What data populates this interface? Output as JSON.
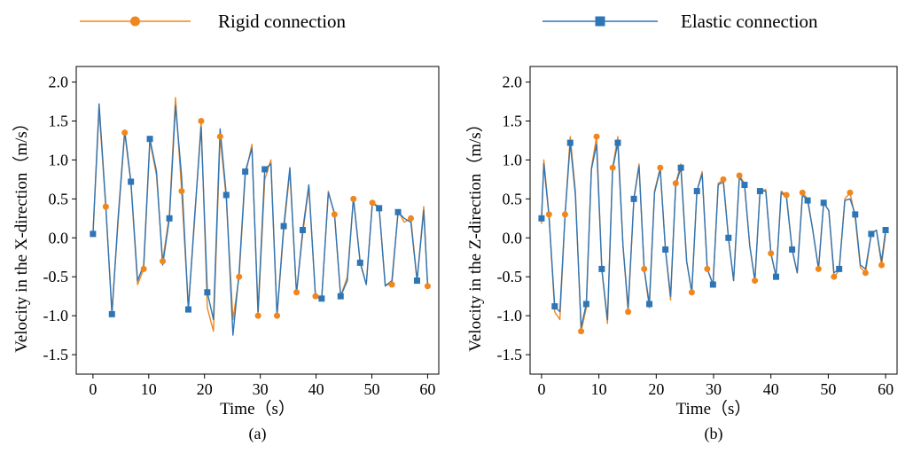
{
  "legend": {
    "items": [
      {
        "label": "Rigid connection",
        "color": "#f0861c",
        "marker": "circle"
      },
      {
        "label": "Elastic connection",
        "color": "#2e75b6",
        "marker": "square"
      }
    ]
  },
  "chart_data": [
    {
      "type": "line",
      "panel_label": "(a)",
      "xlabel": "Time（s）",
      "ylabel": "Velocity in the X-direction（m/s）",
      "xlim": [
        -3,
        62
      ],
      "ylim": [
        -1.75,
        2.2
      ],
      "xticks": [
        0,
        10,
        20,
        30,
        40,
        50,
        60
      ],
      "yticks": [
        -1.5,
        -1.0,
        -0.5,
        0.0,
        0.5,
        1.0,
        1.5,
        2.0
      ],
      "grid": false,
      "legend_position": "top",
      "series": [
        {
          "name": "Rigid connection",
          "color": "#f0861c",
          "marker": "circle",
          "x": [
            0,
            1.1,
            2.3,
            3.4,
            4.5,
            5.7,
            6.8,
            8.0,
            9.1,
            10.2,
            11.4,
            12.5,
            13.7,
            14.8,
            15.9,
            17.1,
            18.2,
            19.4,
            20.5,
            21.6,
            22.8,
            23.9,
            25.1,
            26.2,
            27.3,
            28.5,
            29.6,
            30.8,
            31.9,
            33.0,
            34.2,
            35.3,
            36.5,
            37.6,
            38.7,
            39.9,
            41.0,
            42.2,
            43.3,
            44.4,
            45.6,
            46.7,
            47.9,
            49.0,
            50.1,
            51.3,
            52.4,
            53.6,
            54.7,
            55.8,
            57.0,
            58.1,
            59.3,
            60.0
          ],
          "y": [
            0.05,
            1.65,
            0.4,
            -0.95,
            0.2,
            1.35,
            0.7,
            -0.6,
            -0.4,
            1.25,
            0.8,
            -0.3,
            0.3,
            1.8,
            0.6,
            -0.9,
            0.2,
            1.5,
            -0.9,
            -1.2,
            1.3,
            0.5,
            -1.05,
            -0.5,
            0.8,
            1.2,
            -1.0,
            0.75,
            1.0,
            -1.0,
            0.1,
            0.85,
            -0.7,
            0.05,
            0.65,
            -0.75,
            -0.8,
            0.6,
            0.3,
            -0.75,
            -0.5,
            0.5,
            -0.3,
            -0.6,
            0.45,
            0.4,
            -0.6,
            -0.6,
            0.35,
            0.2,
            0.25,
            -0.55,
            0.4,
            -0.62
          ]
        },
        {
          "name": "Elastic connection",
          "color": "#2e75b6",
          "marker": "square",
          "x": [
            0,
            1.1,
            2.3,
            3.4,
            4.5,
            5.7,
            6.8,
            8.0,
            9.1,
            10.2,
            11.4,
            12.5,
            13.7,
            14.8,
            15.9,
            17.1,
            18.2,
            19.4,
            20.5,
            21.6,
            22.8,
            23.9,
            25.1,
            26.2,
            27.3,
            28.5,
            29.6,
            30.8,
            31.9,
            33.0,
            34.2,
            35.3,
            36.5,
            37.6,
            38.7,
            39.9,
            41.0,
            42.2,
            43.3,
            44.4,
            45.6,
            46.7,
            47.9,
            49.0,
            50.1,
            51.3,
            52.4,
            53.6,
            54.7,
            55.8,
            57.0,
            58.1,
            59.3,
            60.0
          ],
          "y": [
            0.05,
            1.72,
            0.42,
            -0.98,
            0.25,
            1.38,
            0.72,
            -0.55,
            -0.35,
            1.27,
            0.85,
            -0.35,
            0.25,
            1.7,
            0.78,
            -0.92,
            0.25,
            1.42,
            -0.7,
            -1.05,
            1.4,
            0.55,
            -1.25,
            -0.45,
            0.85,
            1.15,
            -0.95,
            0.88,
            0.95,
            -1.0,
            0.15,
            0.9,
            -0.72,
            0.1,
            0.68,
            -0.75,
            -0.78,
            0.58,
            0.32,
            -0.75,
            -0.55,
            0.52,
            -0.32,
            -0.6,
            0.45,
            0.38,
            -0.62,
            -0.55,
            0.33,
            0.25,
            0.2,
            -0.55,
            0.35,
            -0.6
          ]
        }
      ]
    },
    {
      "type": "line",
      "panel_label": "(b)",
      "xlabel": "Time（s）",
      "ylabel": "Velocity in the Z-direction（m/s）",
      "xlim": [
        -2,
        62
      ],
      "ylim": [
        -1.75,
        2.2
      ],
      "xticks": [
        0,
        10,
        20,
        30,
        40,
        50,
        60
      ],
      "yticks": [
        -1.5,
        -1.0,
        -0.5,
        0.0,
        0.5,
        1.0,
        1.5,
        2.0
      ],
      "grid": false,
      "legend_position": "top",
      "series": [
        {
          "name": "Rigid connection",
          "color": "#f0861c",
          "marker": "circle",
          "x": [
            0,
            0.4,
            1.3,
            2.3,
            3.2,
            4.1,
            5.0,
            5.9,
            6.9,
            7.8,
            8.7,
            9.6,
            10.5,
            11.5,
            12.4,
            13.3,
            14.2,
            15.1,
            16.1,
            17.0,
            17.9,
            18.8,
            19.7,
            20.7,
            21.6,
            22.5,
            23.4,
            24.3,
            25.3,
            26.2,
            27.1,
            28.0,
            28.9,
            29.9,
            30.8,
            31.7,
            32.6,
            33.5,
            34.5,
            35.4,
            36.3,
            37.2,
            38.1,
            39.1,
            40.0,
            40.9,
            41.8,
            42.7,
            43.7,
            44.6,
            45.5,
            46.4,
            47.3,
            48.3,
            49.2,
            50.1,
            51.0,
            51.9,
            52.9,
            53.8,
            54.7,
            55.6,
            56.5,
            57.5,
            58.4,
            59.3,
            60.0
          ],
          "y": [
            0.18,
            1.0,
            0.3,
            -0.95,
            -1.05,
            0.3,
            1.3,
            0.6,
            -1.2,
            -0.9,
            0.9,
            1.3,
            -0.4,
            -1.1,
            0.9,
            1.3,
            -0.1,
            -0.95,
            0.5,
            0.95,
            -0.4,
            -0.9,
            0.6,
            0.9,
            -0.15,
            -0.8,
            0.7,
            0.95,
            -0.3,
            -0.7,
            0.6,
            0.85,
            -0.4,
            -0.6,
            0.7,
            0.75,
            0.0,
            -0.55,
            0.8,
            0.7,
            -0.1,
            -0.55,
            0.6,
            0.62,
            -0.2,
            -0.5,
            0.6,
            0.55,
            -0.15,
            -0.45,
            0.58,
            0.5,
            0.1,
            -0.4,
            0.45,
            0.35,
            -0.5,
            -0.42,
            0.5,
            0.58,
            0.25,
            -0.38,
            -0.45,
            0.05,
            0.1,
            -0.35,
            0.05
          ]
        },
        {
          "name": "Elastic connection",
          "color": "#2e75b6",
          "marker": "square",
          "x": [
            0,
            0.4,
            1.3,
            2.3,
            3.2,
            4.1,
            5.0,
            5.9,
            6.9,
            7.8,
            8.7,
            9.6,
            10.5,
            11.5,
            12.4,
            13.3,
            14.2,
            15.1,
            16.1,
            17.0,
            17.9,
            18.8,
            19.7,
            20.7,
            21.6,
            22.5,
            23.4,
            24.3,
            25.3,
            26.2,
            27.1,
            28.0,
            28.9,
            29.9,
            30.8,
            31.7,
            32.6,
            33.5,
            34.5,
            35.4,
            36.3,
            37.2,
            38.1,
            39.1,
            40.0,
            40.9,
            41.8,
            42.7,
            43.7,
            44.6,
            45.5,
            46.4,
            47.3,
            48.3,
            49.2,
            50.1,
            51.0,
            51.9,
            52.9,
            53.8,
            54.7,
            55.6,
            56.5,
            57.5,
            58.4,
            59.3,
            60.0
          ],
          "y": [
            0.25,
            0.95,
            0.28,
            -0.88,
            -0.95,
            0.3,
            1.22,
            0.55,
            -1.15,
            -0.85,
            0.88,
            1.2,
            -0.4,
            -1.05,
            0.88,
            1.22,
            -0.1,
            -0.9,
            0.5,
            0.92,
            -0.4,
            -0.85,
            0.58,
            0.88,
            -0.15,
            -0.75,
            0.68,
            0.9,
            -0.3,
            -0.7,
            0.6,
            0.82,
            -0.4,
            -0.6,
            0.68,
            0.72,
            0.0,
            -0.55,
            0.78,
            0.68,
            -0.1,
            -0.55,
            0.6,
            0.6,
            -0.2,
            -0.5,
            0.58,
            0.52,
            -0.15,
            -0.45,
            0.55,
            0.48,
            0.1,
            -0.4,
            0.45,
            0.35,
            -0.45,
            -0.4,
            0.48,
            0.5,
            0.3,
            -0.35,
            -0.4,
            0.05,
            0.1,
            -0.3,
            0.1
          ]
        }
      ]
    }
  ]
}
